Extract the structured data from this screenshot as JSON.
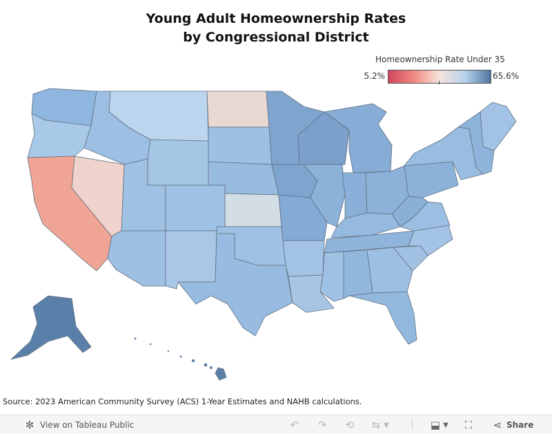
{
  "title_line1": "Young Adult Homeownership Rates",
  "title_line2": "by Congressional District",
  "legend": {
    "title": "Homeownership Rate Under 35",
    "min_label": "5.2%",
    "max_label": "65.6%",
    "colors": [
      "#d1455f",
      "#f08a80",
      "#f7e4dc",
      "#b6d2ea",
      "#4f76a3"
    ]
  },
  "source": "Source: 2023 American Community Survey (ACS) 1-Year Estimates and NAHB calculations.",
  "toolbar": {
    "view_label": "View on Tableau Public",
    "share_label": "Share"
  },
  "regions": [
    {
      "name": "washington",
      "color": "#8fb6de"
    },
    {
      "name": "oregon",
      "color": "#a9c9e8"
    },
    {
      "name": "california",
      "color": "#f0a494"
    },
    {
      "name": "nevada",
      "color": "#efd3cc"
    },
    {
      "name": "idaho",
      "color": "#9cbfe3"
    },
    {
      "name": "montana",
      "color": "#bcd5ee"
    },
    {
      "name": "wyoming",
      "color": "#a6c6e6"
    },
    {
      "name": "utah",
      "color": "#9fc1e3"
    },
    {
      "name": "arizona",
      "color": "#9ec0e3"
    },
    {
      "name": "colorado",
      "color": "#a0c2e4"
    },
    {
      "name": "new-mexico",
      "color": "#a9c8e7"
    },
    {
      "name": "north-dakota",
      "color": "#e8d8d2"
    },
    {
      "name": "south-dakota",
      "color": "#9ec0e3"
    },
    {
      "name": "nebraska",
      "color": "#98bbe0"
    },
    {
      "name": "kansas",
      "color": "#d3dde6"
    },
    {
      "name": "oklahoma",
      "color": "#9fc1e3"
    },
    {
      "name": "texas",
      "color": "#98bce1"
    },
    {
      "name": "minnesota",
      "color": "#7fa5cf"
    },
    {
      "name": "iowa",
      "color": "#7ea5cf"
    },
    {
      "name": "missouri",
      "color": "#84abd5"
    },
    {
      "name": "arkansas",
      "color": "#a3c3e5"
    },
    {
      "name": "louisiana",
      "color": "#a7c6e6"
    },
    {
      "name": "wisconsin",
      "color": "#7aa0cb"
    },
    {
      "name": "illinois",
      "color": "#8cb2da"
    },
    {
      "name": "michigan",
      "color": "#87add7"
    },
    {
      "name": "indiana",
      "color": "#8ab0d9"
    },
    {
      "name": "ohio",
      "color": "#8cb2da"
    },
    {
      "name": "kentucky",
      "color": "#96badf"
    },
    {
      "name": "tennessee",
      "color": "#90b5dc"
    },
    {
      "name": "mississippi",
      "color": "#9fc1e3"
    },
    {
      "name": "alabama",
      "color": "#92b7dd"
    },
    {
      "name": "georgia",
      "color": "#9dbfe2"
    },
    {
      "name": "florida",
      "color": "#93b8de"
    },
    {
      "name": "south-carolina",
      "color": "#a2c2e4"
    },
    {
      "name": "north-carolina",
      "color": "#a4c4e5"
    },
    {
      "name": "virginia",
      "color": "#9cbee2"
    },
    {
      "name": "west-virginia",
      "color": "#8ab0d8"
    },
    {
      "name": "pennsylvania",
      "color": "#8db2da"
    },
    {
      "name": "new-york",
      "color": "#99bce1"
    },
    {
      "name": "new-england",
      "color": "#8fb4dc"
    },
    {
      "name": "maine",
      "color": "#a2c3e5"
    },
    {
      "name": "alaska",
      "color": "#5a7fa8"
    },
    {
      "name": "hawaii",
      "color": "#5d80a8"
    }
  ]
}
